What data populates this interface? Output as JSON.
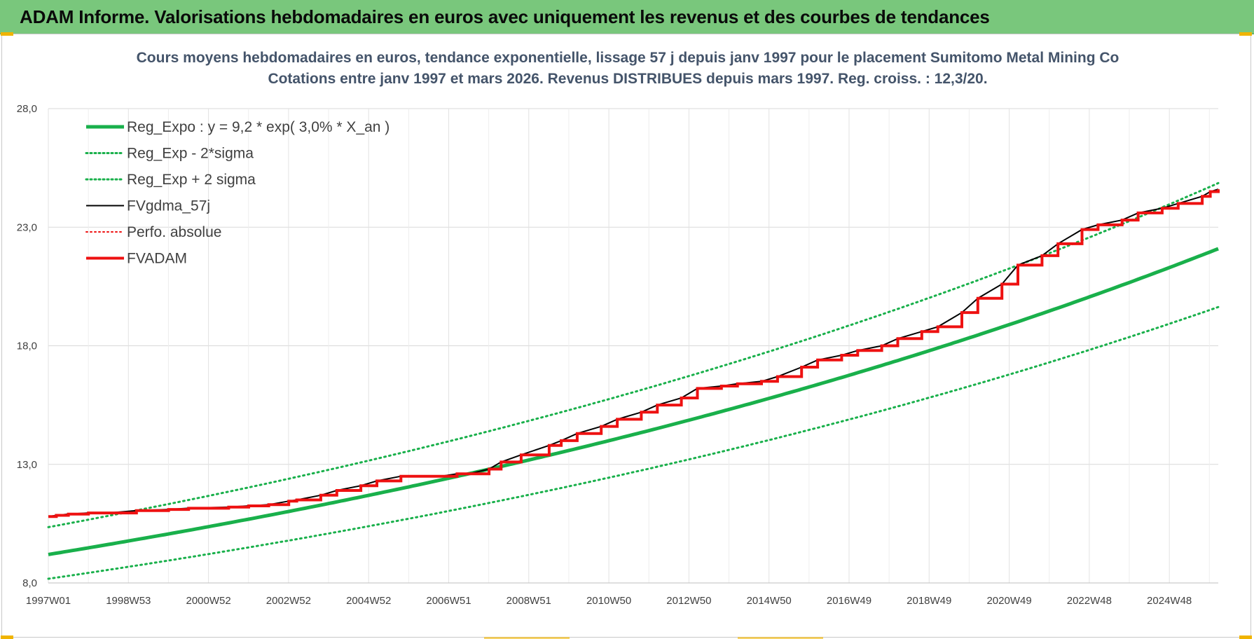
{
  "banner": {
    "title": "ADAM Informe. Valorisations hebdomadaires en euros avec uniquement les revenus et des courbes de tendances"
  },
  "colors": {
    "banner": "#79c77c",
    "reg_expo": "#19b04b",
    "fvadam": "#ee1111",
    "fvgdma": "#000000",
    "accent_corner": "#f0b400"
  },
  "chart_data": {
    "type": "line",
    "title": [
      "Cours moyens hebdomadaires en euros, tendance exponentielle, lissage 57 j depuis janv 1997  pour le placement Sumitomo Metal Mining Co",
      "Cotations entre janv 1997 et mars 2026. Revenus DISTRIBUES depuis mars 1997. Reg. croiss. : 12,3/20."
    ],
    "x_tick_labels": [
      "1997W01",
      "1998W53",
      "2000W52",
      "2002W52",
      "2004W52",
      "2006W51",
      "2008W51",
      "2010W50",
      "2012W50",
      "2014W50",
      "2016W49",
      "2018W49",
      "2020W49",
      "2022W48",
      "2024W48"
    ],
    "x_range": [
      "1997W01",
      "2026W12"
    ],
    "y_tick_labels": [
      "8,0",
      "13,0",
      "18,0",
      "23,0",
      "28,0"
    ],
    "y_ticks": [
      8,
      13,
      18,
      23,
      28
    ],
    "ylim": [
      8,
      28
    ],
    "grid": true,
    "legend_position": "top-left",
    "regression": {
      "a": 9.2,
      "rate": 0.03,
      "sigma_log": 0.118
    },
    "series": [
      {
        "name": "Reg_Expo : y = 9,2 * exp( 3,0% *  X_an )",
        "key": "reg_expo",
        "style": "solid",
        "width": 5,
        "color": "#19b04b"
      },
      {
        "name": "Reg_Exp - 2*sigma",
        "key": "reg_minus",
        "style": "dotted",
        "width": 3,
        "color": "#19b04b"
      },
      {
        "name": "Reg_Exp + 2 sigma",
        "key": "reg_plus",
        "style": "dotted",
        "width": 3,
        "color": "#19b04b"
      },
      {
        "name": "FVgdma_57j",
        "key": "fvgdma",
        "style": "solid",
        "width": 2,
        "color": "#000000"
      },
      {
        "name": "Perfo. absolue",
        "key": "perfo",
        "style": "dotted",
        "width": 2,
        "color": "#ee1111"
      },
      {
        "name": "FVADAM",
        "key": "fvadam",
        "style": "solid",
        "width": 4,
        "color": "#ee1111"
      }
    ],
    "fvadam_steps": {
      "x_years": [
        0,
        0.2,
        0.5,
        1.0,
        1.5,
        2.2,
        3.0,
        3.5,
        4.5,
        5.0,
        5.5,
        6.0,
        6.2,
        6.8,
        7.2,
        7.8,
        8.2,
        8.8,
        9.5,
        9.8,
        10.2,
        10.5,
        11.0,
        11.3,
        11.8,
        12.5,
        12.8,
        13.2,
        13.8,
        14.2,
        14.8,
        15.2,
        15.8,
        16.2,
        16.8,
        17.2,
        17.8,
        18.2,
        18.8,
        19.2,
        19.8,
        20.2,
        20.8,
        21.2,
        21.8,
        22.2,
        22.8,
        23.2,
        23.8,
        24.2,
        24.8,
        25.2,
        25.8,
        26.2,
        26.8,
        27.2,
        27.8,
        28.2,
        28.8,
        29.0,
        29.2
      ],
      "values": [
        10.8,
        10.85,
        10.9,
        10.95,
        10.95,
        11.05,
        11.1,
        11.15,
        11.2,
        11.25,
        11.3,
        11.45,
        11.5,
        11.7,
        11.9,
        12.1,
        12.3,
        12.5,
        12.5,
        12.5,
        12.6,
        12.6,
        12.8,
        13.1,
        13.4,
        13.8,
        14.0,
        14.3,
        14.6,
        14.9,
        15.2,
        15.5,
        15.8,
        16.2,
        16.3,
        16.4,
        16.5,
        16.7,
        17.1,
        17.4,
        17.6,
        17.8,
        18.0,
        18.3,
        18.6,
        18.8,
        19.4,
        20.0,
        20.6,
        21.4,
        21.8,
        22.3,
        22.9,
        23.1,
        23.3,
        23.6,
        23.8,
        24.0,
        24.3,
        24.5,
        24.6
      ]
    }
  }
}
